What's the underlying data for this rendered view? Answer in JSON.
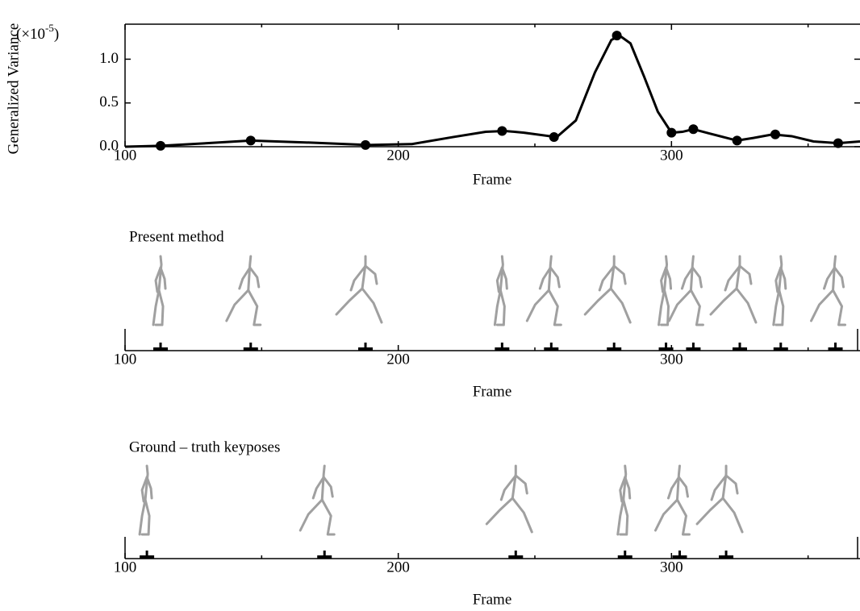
{
  "chart_data": [
    {
      "type": "line",
      "ylabel": "Generalized Variance",
      "y_unit": {
        "prefix": "(×10",
        "exponent": "-5",
        "suffix": ")"
      },
      "xlabel": "Frame",
      "xlim": [
        100,
        369
      ],
      "xticks": [
        100,
        200,
        300
      ],
      "minor_xticks": [
        150,
        250,
        350
      ],
      "ylim": [
        0,
        1.4
      ],
      "yticks": [
        {
          "value": 0,
          "label": "0.0"
        },
        {
          "value": 0.5,
          "label": "0.5"
        },
        {
          "value": 1,
          "label": "1.0"
        }
      ],
      "series": [
        {
          "style": "line",
          "color": "#000000",
          "x": [
            100,
            113,
            130,
            146,
            165,
            189,
            205,
            220,
            232,
            239,
            246,
            258,
            265,
            272,
            278,
            281,
            285,
            290,
            295,
            300,
            304,
            308,
            314,
            324,
            330,
            337,
            344,
            352,
            361,
            369
          ],
          "values": [
            0.0,
            0.01,
            0.04,
            0.07,
            0.05,
            0.02,
            0.03,
            0.11,
            0.17,
            0.18,
            0.16,
            0.11,
            0.3,
            0.85,
            1.22,
            1.27,
            1.18,
            0.8,
            0.4,
            0.16,
            0.17,
            0.2,
            0.15,
            0.07,
            0.1,
            0.14,
            0.12,
            0.06,
            0.04,
            0.06
          ]
        },
        {
          "style": "points",
          "color": "#000000",
          "x": [
            113,
            146,
            188,
            238,
            257,
            280,
            300,
            308,
            324,
            338,
            361
          ],
          "values": [
            0.01,
            0.07,
            0.02,
            0.18,
            0.11,
            1.27,
            0.16,
            0.2,
            0.07,
            0.14,
            0.04
          ]
        }
      ]
    },
    {
      "type": "events",
      "title": "Present method",
      "xlabel": "Frame",
      "xlim": [
        100,
        369
      ],
      "xticks": [
        100,
        200,
        300
      ],
      "minor_xticks": [
        150,
        250,
        350
      ],
      "x": [
        113,
        146,
        188,
        238,
        256,
        279,
        298,
        308,
        325,
        340,
        360
      ],
      "color": "#000000"
    },
    {
      "type": "events",
      "title": "Ground – truth keyposes",
      "xlabel": "Frame",
      "xlim": [
        100,
        369
      ],
      "xticks": [
        100,
        200,
        300
      ],
      "minor_xticks": [
        150,
        250,
        350
      ],
      "x": [
        108,
        173,
        243,
        283,
        303,
        320
      ],
      "color": "#000000"
    }
  ]
}
